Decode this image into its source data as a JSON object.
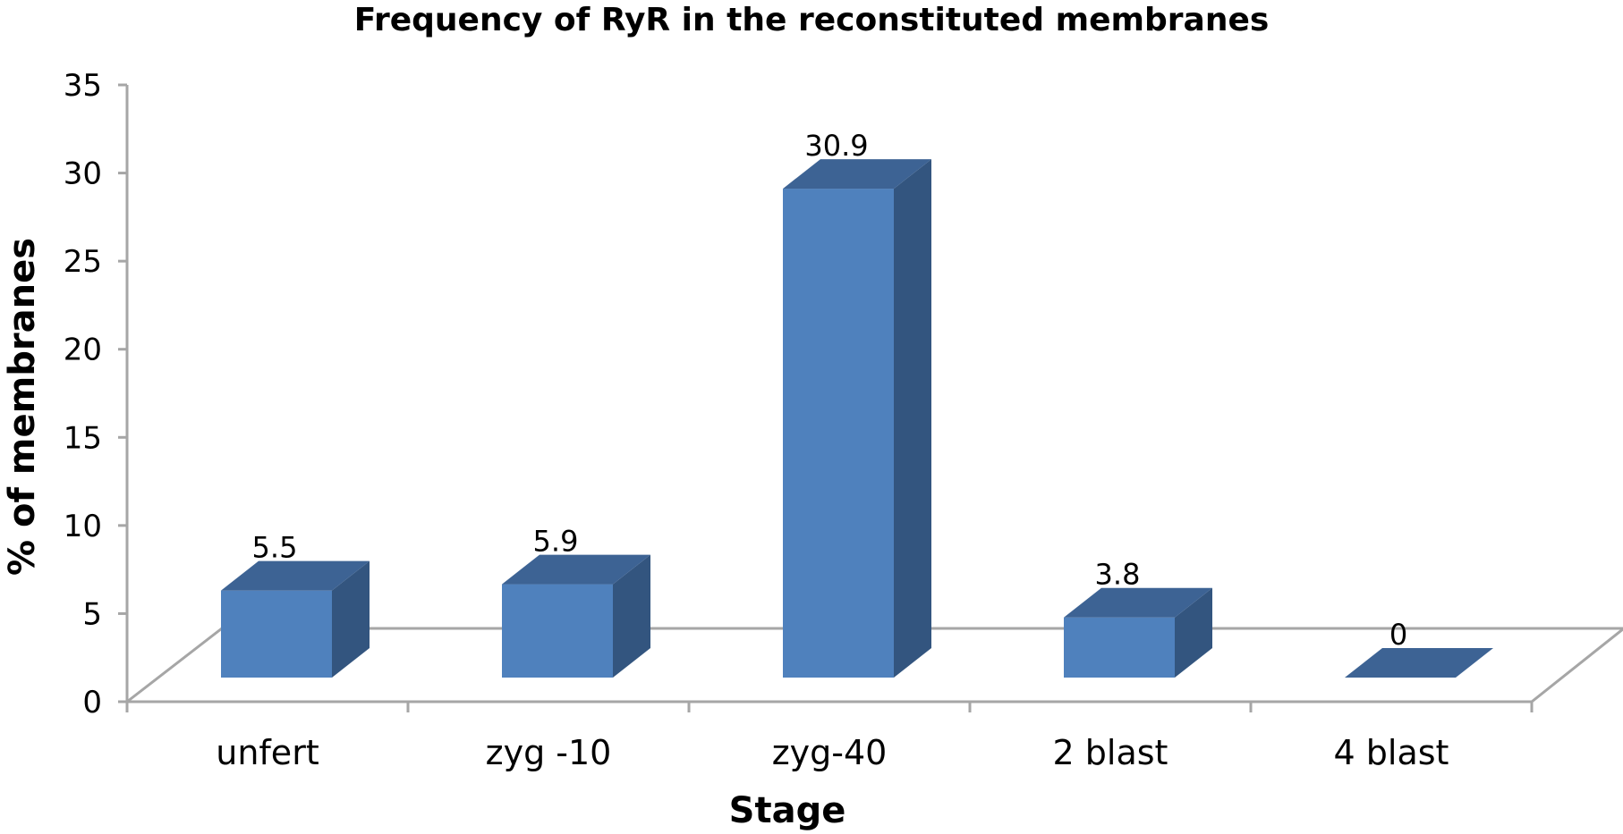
{
  "chart_data": {
    "type": "bar",
    "title": "Frequency of RyR in the reconstituted membranes",
    "xlabel": "Stage",
    "ylabel": "% of membranes",
    "categories": [
      "unfert",
      "zyg -10",
      "zyg-40",
      "2 blast",
      "4 blast"
    ],
    "values": [
      5.5,
      5.9,
      30.9,
      3.8,
      0
    ],
    "data_labels": [
      "5.5",
      "5.9",
      "30.9",
      "3.8",
      "0"
    ],
    "ylim": [
      0,
      35
    ],
    "yticks": [
      0,
      5,
      10,
      15,
      20,
      25,
      30,
      35
    ],
    "grid": false,
    "style": "3d-column",
    "colors": {
      "bar_front": "#4f81bd",
      "bar_side": "#33557f",
      "bar_top": "#3d6394",
      "axis": "#a6a6a6"
    }
  }
}
